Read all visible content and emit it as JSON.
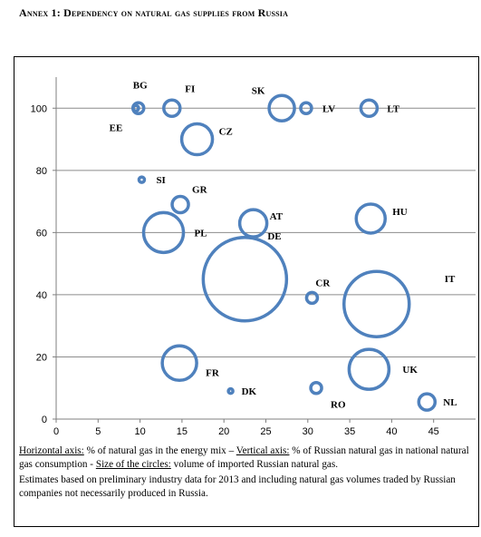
{
  "heading": "Annex 1: Dependency on natural gas supplies from Russia",
  "chart_data": {
    "type": "bubble",
    "xlim": [
      0,
      50
    ],
    "ylim": [
      0,
      110
    ],
    "x_ticks": [
      0,
      5,
      10,
      15,
      20,
      25,
      30,
      35,
      40,
      45
    ],
    "y_ticks": [
      0,
      20,
      40,
      60,
      80,
      100
    ],
    "grid": "horizontal",
    "bubble_color": "#4f81bd",
    "points": [
      {
        "label": "BG",
        "x": 9.8,
        "y": 100,
        "size": 6
      },
      {
        "label": "EE",
        "x": 9.5,
        "y": 100,
        "size": 3
      },
      {
        "label": "FI",
        "x": 13.8,
        "y": 100,
        "size": 9
      },
      {
        "label": "SK",
        "x": 26.9,
        "y": 100,
        "size": 14
      },
      {
        "label": "LV",
        "x": 29.8,
        "y": 100,
        "size": 6
      },
      {
        "label": "LT",
        "x": 37.3,
        "y": 100,
        "size": 9
      },
      {
        "label": "CZ",
        "x": 16.8,
        "y": 90,
        "size": 17
      },
      {
        "label": "SI",
        "x": 10.2,
        "y": 77,
        "size": 3
      },
      {
        "label": "GR",
        "x": 14.8,
        "y": 69,
        "size": 9
      },
      {
        "label": "AT",
        "x": 23.5,
        "y": 63,
        "size": 15
      },
      {
        "label": "PL",
        "x": 12.8,
        "y": 60,
        "size": 22
      },
      {
        "label": "HU",
        "x": 37.5,
        "y": 64.5,
        "size": 16
      },
      {
        "label": "DE",
        "x": 22.5,
        "y": 45,
        "size": 46
      },
      {
        "label": "CR",
        "x": 30.5,
        "y": 39,
        "size": 6
      },
      {
        "label": "IT",
        "x": 38.2,
        "y": 37,
        "size": 36
      },
      {
        "label": "FR",
        "x": 14.7,
        "y": 18,
        "size": 19
      },
      {
        "label": "UK",
        "x": 37.3,
        "y": 16,
        "size": 22
      },
      {
        "label": "DK",
        "x": 20.8,
        "y": 9,
        "size": 2
      },
      {
        "label": "RO",
        "x": 31,
        "y": 10,
        "size": 6
      },
      {
        "label": "NL",
        "x": 44.2,
        "y": 5.5,
        "size": 9
      }
    ]
  },
  "notes": {
    "axis_line": {
      "h_label": "Horizontal axis:",
      "h_text": " % of natural gas in the energy mix – ",
      "v_label": "Vertical axis:",
      "v_text": " % of Russian natural gas in national natural gas consumption  - ",
      "s_label": "Size of the circles:",
      "s_text": " volume of imported Russian natural gas."
    },
    "estimates": "Estimates based on preliminary industry data for 2013 and including natural gas volumes traded by Russian companies not necessarily produced in Russia."
  }
}
